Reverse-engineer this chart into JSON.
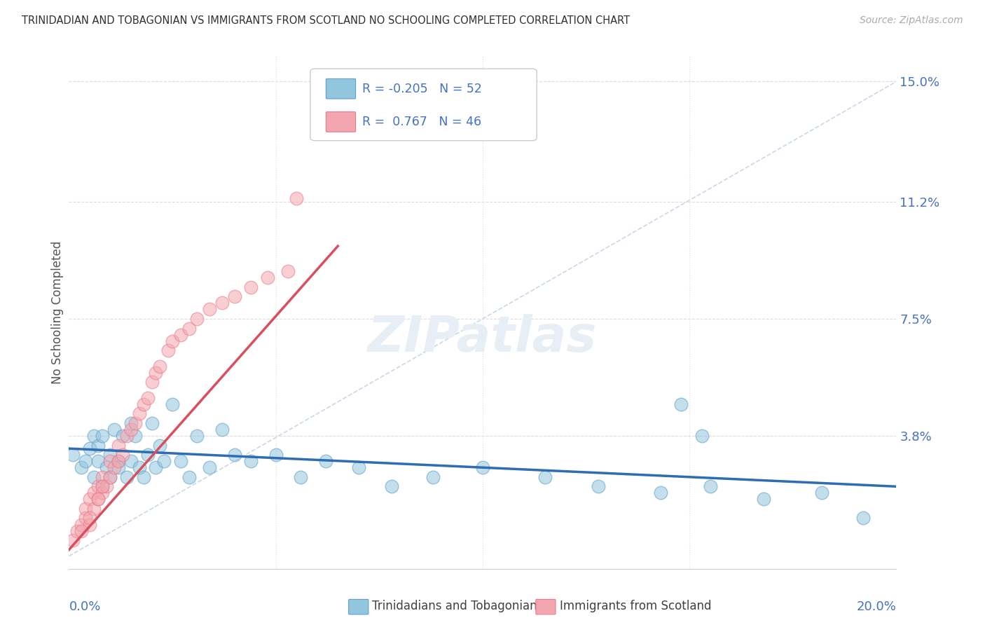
{
  "title": "TRINIDADIAN AND TOBAGONIAN VS IMMIGRANTS FROM SCOTLAND NO SCHOOLING COMPLETED CORRELATION CHART",
  "source": "Source: ZipAtlas.com",
  "ylabel": "No Schooling Completed",
  "ytick_labels": [
    "",
    "3.8%",
    "7.5%",
    "11.2%",
    "15.0%"
  ],
  "ytick_values": [
    0.0,
    0.038,
    0.075,
    0.112,
    0.15
  ],
  "xmin": 0.0,
  "xmax": 0.2,
  "ymin": -0.004,
  "ymax": 0.158,
  "color_blue": "#92C5DE",
  "color_pink": "#F4A6B0",
  "color_blue_edge": "#5B9EC9",
  "color_pink_edge": "#E87A8A",
  "color_trendline_blue": "#2E6DB4",
  "color_trendline_pink": "#D94F5C",
  "color_diagonal": "#C8D8E8",
  "color_title": "#404040",
  "color_source": "#999999",
  "color_axis_blue": "#4472c4",
  "background_color": "#ffffff",
  "watermark_color": "#E8EEF5",
  "blue_x": [
    0.001,
    0.003,
    0.004,
    0.005,
    0.006,
    0.006,
    0.007,
    0.007,
    0.008,
    0.008,
    0.009,
    0.01,
    0.01,
    0.011,
    0.012,
    0.012,
    0.013,
    0.014,
    0.015,
    0.015,
    0.016,
    0.017,
    0.018,
    0.019,
    0.02,
    0.021,
    0.022,
    0.023,
    0.025,
    0.027,
    0.029,
    0.031,
    0.034,
    0.037,
    0.04,
    0.044,
    0.05,
    0.056,
    0.062,
    0.07,
    0.078,
    0.088,
    0.1,
    0.115,
    0.128,
    0.143,
    0.155,
    0.168,
    0.182,
    0.192,
    0.148,
    0.153
  ],
  "blue_y": [
    0.032,
    0.028,
    0.03,
    0.034,
    0.025,
    0.038,
    0.03,
    0.035,
    0.022,
    0.038,
    0.028,
    0.032,
    0.025,
    0.04,
    0.03,
    0.028,
    0.038,
    0.025,
    0.042,
    0.03,
    0.038,
    0.028,
    0.025,
    0.032,
    0.042,
    0.028,
    0.035,
    0.03,
    0.048,
    0.03,
    0.025,
    0.038,
    0.028,
    0.04,
    0.032,
    0.03,
    0.032,
    0.025,
    0.03,
    0.028,
    0.022,
    0.025,
    0.028,
    0.025,
    0.022,
    0.02,
    0.022,
    0.018,
    0.02,
    0.012,
    0.048,
    0.038
  ],
  "pink_x": [
    0.001,
    0.002,
    0.003,
    0.004,
    0.004,
    0.005,
    0.005,
    0.006,
    0.006,
    0.007,
    0.007,
    0.008,
    0.008,
    0.009,
    0.01,
    0.01,
    0.011,
    0.012,
    0.012,
    0.013,
    0.014,
    0.015,
    0.016,
    0.017,
    0.018,
    0.019,
    0.02,
    0.021,
    0.022,
    0.024,
    0.025,
    0.027,
    0.029,
    0.031,
    0.034,
    0.037,
    0.04,
    0.044,
    0.048,
    0.053,
    0.003,
    0.005,
    0.007,
    0.008,
    0.055
  ],
  "pink_y": [
    0.005,
    0.008,
    0.01,
    0.012,
    0.015,
    0.01,
    0.018,
    0.015,
    0.02,
    0.018,
    0.022,
    0.02,
    0.025,
    0.022,
    0.025,
    0.03,
    0.028,
    0.03,
    0.035,
    0.032,
    0.038,
    0.04,
    0.042,
    0.045,
    0.048,
    0.05,
    0.055,
    0.058,
    0.06,
    0.065,
    0.068,
    0.07,
    0.072,
    0.075,
    0.078,
    0.08,
    0.082,
    0.085,
    0.088,
    0.09,
    0.008,
    0.012,
    0.018,
    0.022,
    0.113
  ],
  "blue_trend_x": [
    0.0,
    0.2
  ],
  "blue_trend_y": [
    0.034,
    0.022
  ],
  "pink_trend_x": [
    0.0,
    0.065
  ],
  "pink_trend_y": [
    0.002,
    0.098
  ]
}
